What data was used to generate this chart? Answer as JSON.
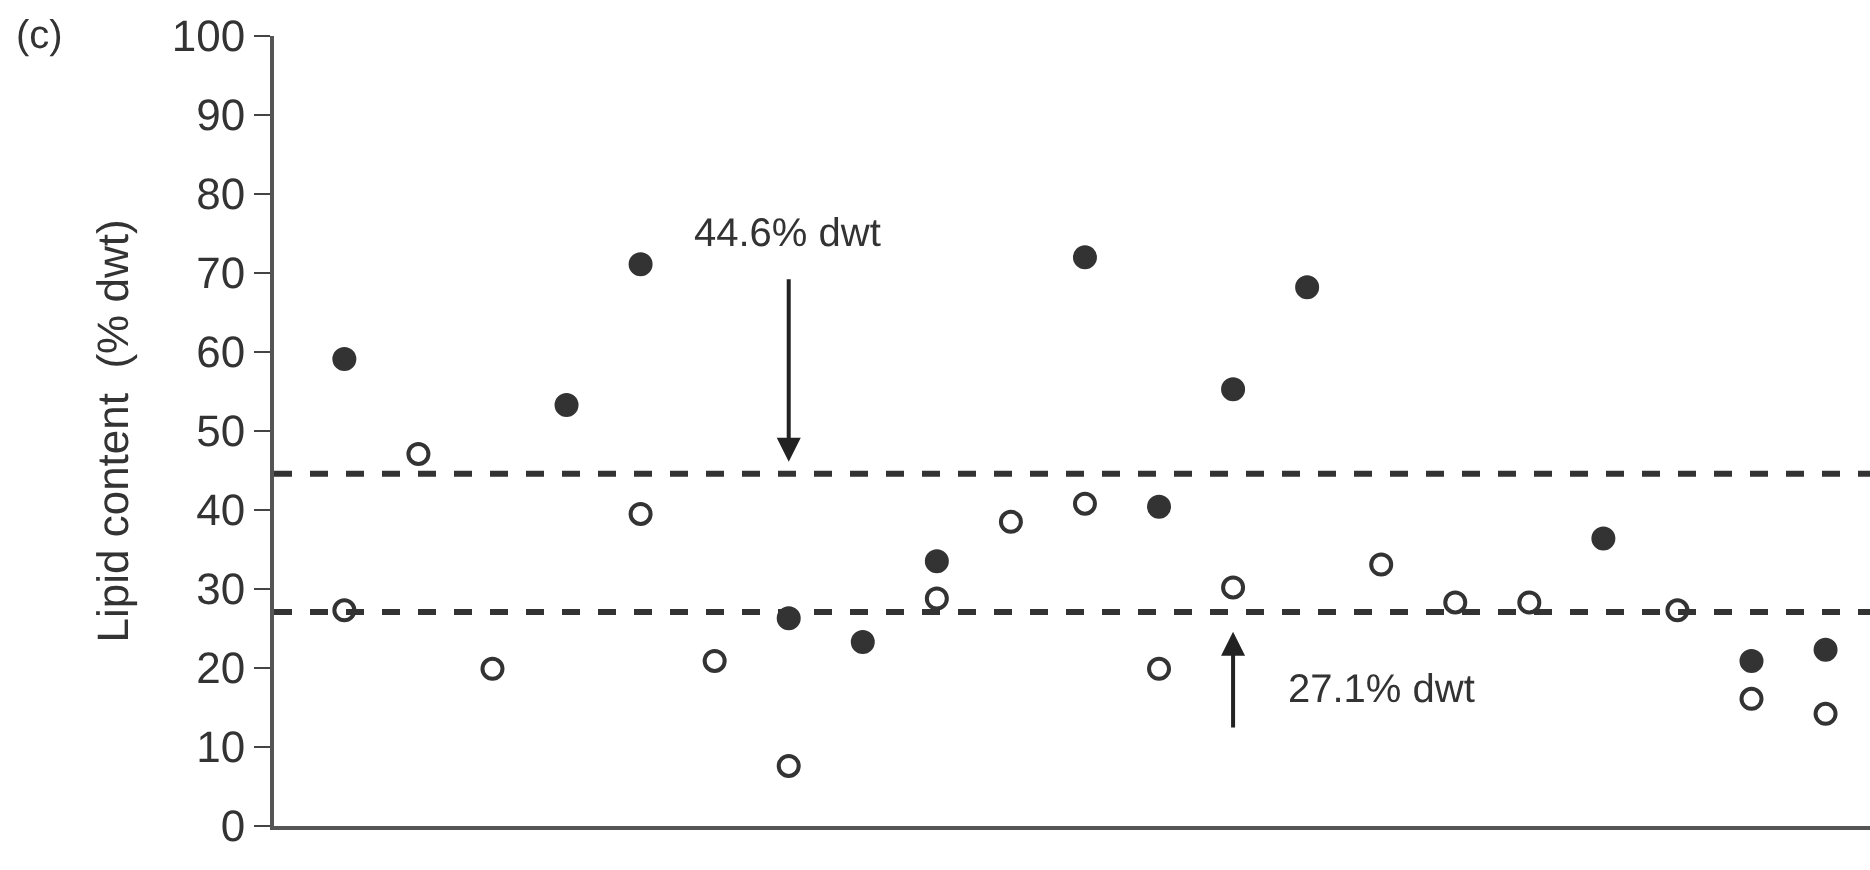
{
  "chart_data": {
    "type": "scatter",
    "ylabel": "Lipid content  (% dwt)",
    "annotations": [
      "(c)"
    ],
    "categories": [
      null,
      null,
      null,
      null,
      null,
      null,
      null,
      null,
      null,
      null,
      null,
      null,
      null,
      null,
      null,
      null,
      null,
      null,
      null,
      null,
      null
    ],
    "series": [
      {
        "color": "#333333",
        "marker": "circle",
        "values": [
          59.1,
          null,
          null,
          53.3,
          71.1,
          null,
          26.3,
          23.3,
          33.5,
          null,
          72.0,
          40.4,
          55.3,
          68.2,
          null,
          null,
          null,
          36.4,
          null,
          20.9,
          22.3
        ]
      },
      {
        "color": "#333333",
        "marker": "circle-open",
        "values": [
          27.3,
          47.1,
          19.9,
          null,
          39.5,
          20.9,
          7.6,
          null,
          28.8,
          38.5,
          40.8,
          19.9,
          30.2,
          null,
          33.1,
          28.3,
          28.3,
          null,
          27.3,
          16.1,
          14.2
        ]
      }
    ],
    "ylim": [
      0,
      100
    ],
    "yticks": [
      0,
      10,
      20,
      30,
      40,
      50,
      60,
      70,
      80,
      90,
      100
    ],
    "ref_lines": [
      {
        "axis": "y",
        "value": 44.6,
        "label": "44.6% dwt",
        "line_style": "dashed"
      },
      {
        "axis": "y",
        "value": 27.1,
        "label": "27.1% dwt",
        "line_style": "dashed"
      }
    ]
  }
}
